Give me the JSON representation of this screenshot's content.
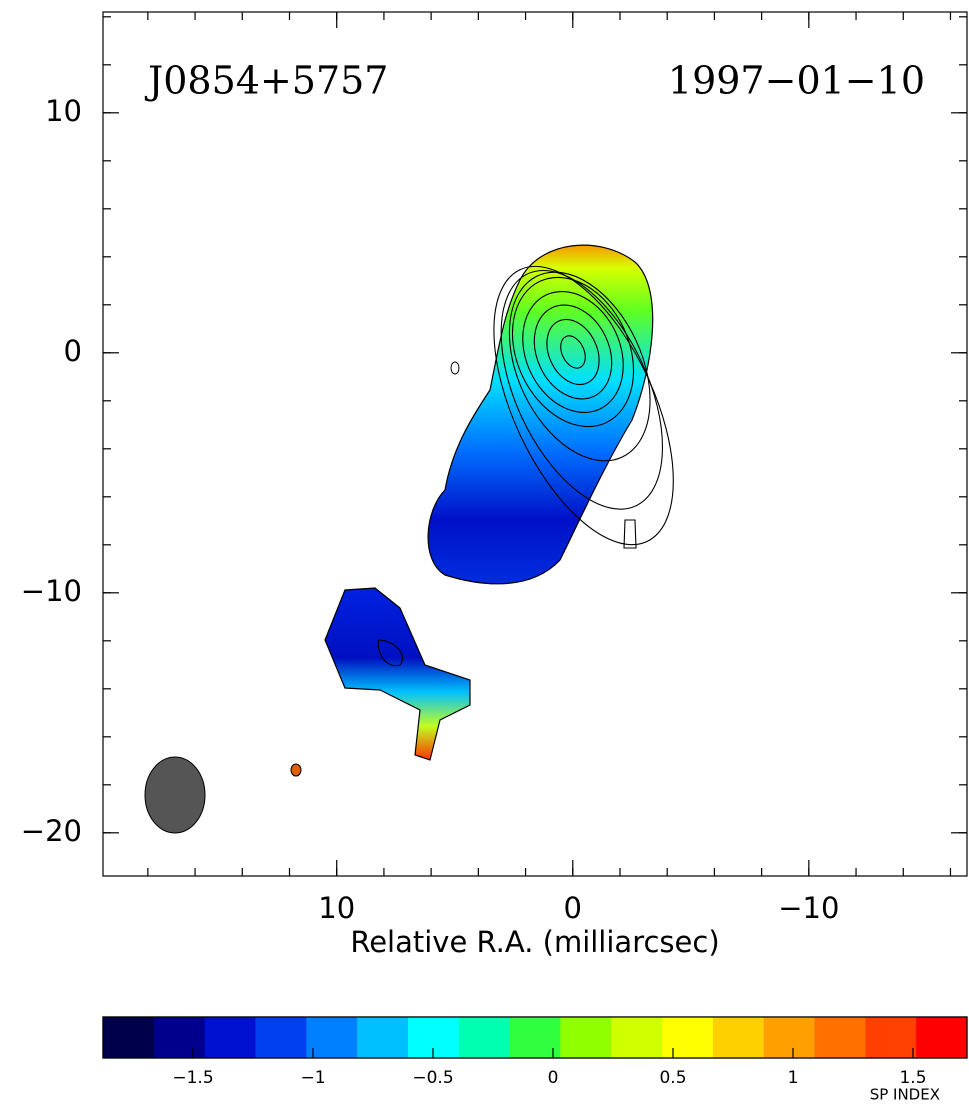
{
  "chart_data": {
    "type": "map",
    "source_name": "J0854+5757",
    "date": "1997−01−10",
    "x_label": "Relative R.A. (milliarcsec)",
    "xlim": [
      19.9,
      -16.7
    ],
    "ylim": [
      -21.8,
      14.2
    ],
    "xticks": [
      10,
      0,
      {
        "value": -10,
        "label": "−10"
      }
    ],
    "yticks": [
      10,
      0,
      {
        "value": -10,
        "label": "−10"
      },
      {
        "value": -20,
        "label": "−20"
      }
    ],
    "minor_tick_step": 2,
    "colorbar": {
      "label": "SP INDEX",
      "lim": [
        -1.875,
        1.725
      ],
      "ticks": [
        {
          "value": -1.5,
          "label": "−1.5"
        },
        {
          "value": -1,
          "label": "−1"
        },
        {
          "value": -0.5,
          "label": "−0.5"
        },
        0,
        0.5,
        1,
        1.5
      ],
      "colors": [
        "#00004a",
        "#00008c",
        "#0010d0",
        "#0040f0",
        "#0080ff",
        "#00c0ff",
        "#00ffff",
        "#00ffb0",
        "#30ff40",
        "#90ff00",
        "#d0ff00",
        "#ffff00",
        "#ffd000",
        "#ffa000",
        "#ff7000",
        "#ff4000",
        "#ff0000"
      ]
    }
  }
}
